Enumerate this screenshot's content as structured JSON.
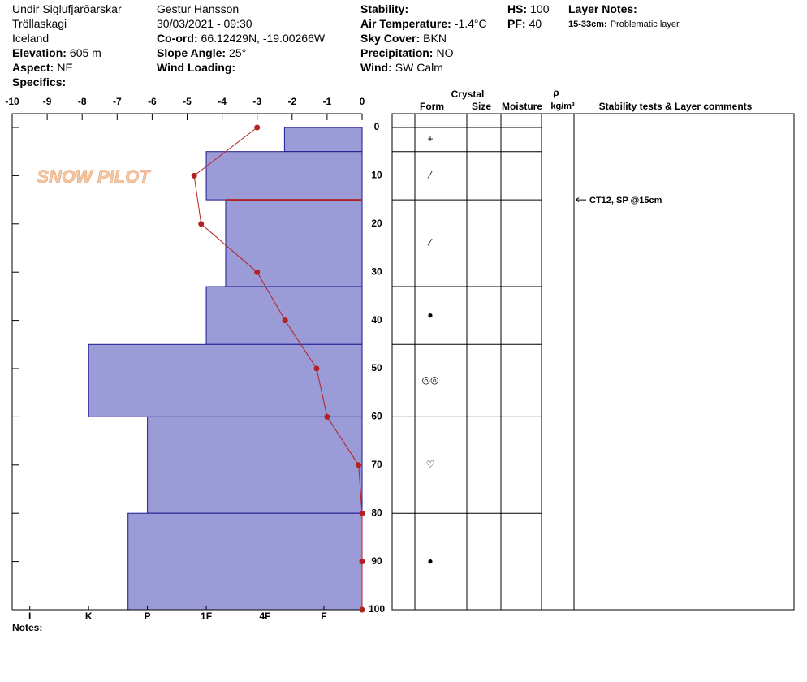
{
  "header": {
    "columns": [
      [
        {
          "text": "Undir Siglufjarðarskar"
        },
        {
          "text": "Tröllaskagi"
        },
        {
          "text": "Iceland"
        },
        {
          "label": "Elevation:",
          "value": "605 m"
        },
        {
          "label": "Aspect:",
          "value": "NE"
        },
        {
          "label": "Specifics:"
        }
      ],
      [
        {
          "text": "Gestur Hansson"
        },
        {
          "text": "30/03/2021 - 09:30"
        },
        {
          "label": "Co-ord:",
          "value": "66.12429N, -19.00266W"
        },
        {
          "label": "Slope Angle:",
          "value": "25°"
        },
        {
          "label": "Wind Loading:"
        }
      ],
      [
        {
          "label": "Stability:"
        },
        {
          "label": "Air Temperature:",
          "value": "-1.4°C"
        },
        {
          "label": "Sky Cover:",
          "value": "BKN"
        },
        {
          "label": "Precipitation:",
          "value": "NO"
        },
        {
          "label": "Wind:",
          "value": "SW Calm"
        }
      ],
      [
        {
          "label": "HS:",
          "value": "100"
        },
        {
          "label": "PF:",
          "value": "40"
        }
      ],
      [
        {
          "label": "Layer Notes:"
        },
        {
          "label": "15-33cm:",
          "value": "Problematic layer"
        }
      ]
    ]
  },
  "logo": "SNOW PILOT",
  "chart_data": {
    "type": "snow-profile",
    "xlim": [
      -10,
      0
    ],
    "xticks": [
      -10,
      -9,
      -8,
      -7,
      -6,
      -5,
      -4,
      -3,
      -2,
      -1,
      0
    ],
    "ylim": [
      0,
      100
    ],
    "yticks": [
      0,
      10,
      20,
      30,
      40,
      50,
      60,
      70,
      80,
      90,
      100
    ],
    "hardness_xlim": [
      0.35,
      6.3
    ],
    "hardness_ticks": [
      {
        "value": 1,
        "label": "F"
      },
      {
        "value": 2,
        "label": "4F"
      },
      {
        "value": 3,
        "label": "1F"
      },
      {
        "value": 4,
        "label": "P"
      },
      {
        "value": 5,
        "label": "K"
      },
      {
        "value": 6,
        "label": "I"
      }
    ],
    "bar_color": "#9b9bd8",
    "temperature": {
      "color": "#b22222",
      "depths": [
        0,
        10,
        20,
        30,
        40,
        50,
        60,
        70,
        80,
        90,
        100
      ],
      "values": [
        -3,
        -4.8,
        -4.6,
        -3,
        -2.2,
        -1.3,
        -1,
        -0.1,
        0,
        0,
        0
      ]
    },
    "layers": [
      {
        "top": 0,
        "bottom": 5,
        "hardness": 1.67,
        "form": "+"
      },
      {
        "top": 5,
        "bottom": 15,
        "hardness": 3,
        "form": "⁄"
      },
      {
        "top": 15,
        "bottom": 33,
        "hardness": 2.67,
        "form": "⁄"
      },
      {
        "top": 33,
        "bottom": 45,
        "hardness": 3,
        "form": "●"
      },
      {
        "top": 45,
        "bottom": 60,
        "hardness": 5,
        "form": "◎◎"
      },
      {
        "top": 60,
        "bottom": 80,
        "hardness": 4,
        "form": "♡"
      },
      {
        "top": 80,
        "bottom": 100,
        "hardness": 4.33,
        "form": "●"
      }
    ],
    "problematic_layer": {
      "top": 15,
      "bottom": 33,
      "color": "#b22222"
    },
    "columns": {
      "crystal": "Crystal",
      "form": "Form",
      "size": "Size",
      "moisture": "Moisture",
      "rho": "ρ",
      "density_unit": "kg/m³",
      "comments": "Stability tests & Layer comments"
    },
    "tests": [
      {
        "depth": 15,
        "text": "CT12, SP @15cm"
      }
    ],
    "notes_label": "Notes:"
  }
}
